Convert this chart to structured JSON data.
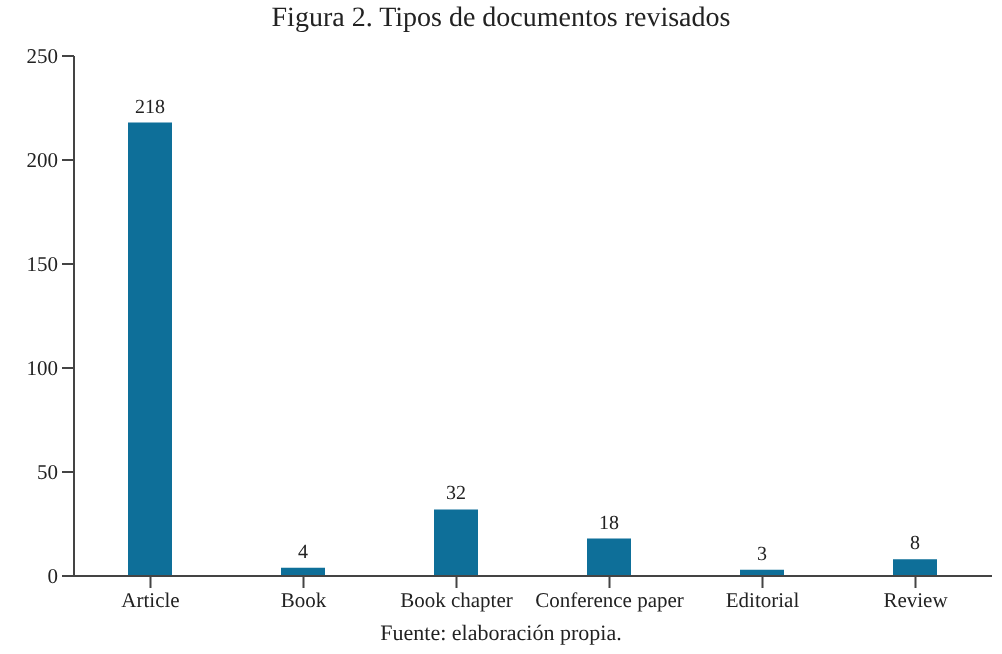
{
  "chart_data": {
    "type": "bar",
    "title": "Figura 2. Tipos de documentos revisados",
    "categories": [
      "Article",
      "Book",
      "Book chapter",
      "Conference paper",
      "Editorial",
      "Review"
    ],
    "values": [
      218,
      4,
      32,
      18,
      3,
      8
    ],
    "color": "#0e6f99",
    "ylim": [
      0,
      250
    ],
    "yticks": [
      0,
      50,
      100,
      150,
      200,
      250
    ],
    "grid": false,
    "data_labels": true,
    "annotations": [
      "Fuente: elaboración propia."
    ]
  }
}
